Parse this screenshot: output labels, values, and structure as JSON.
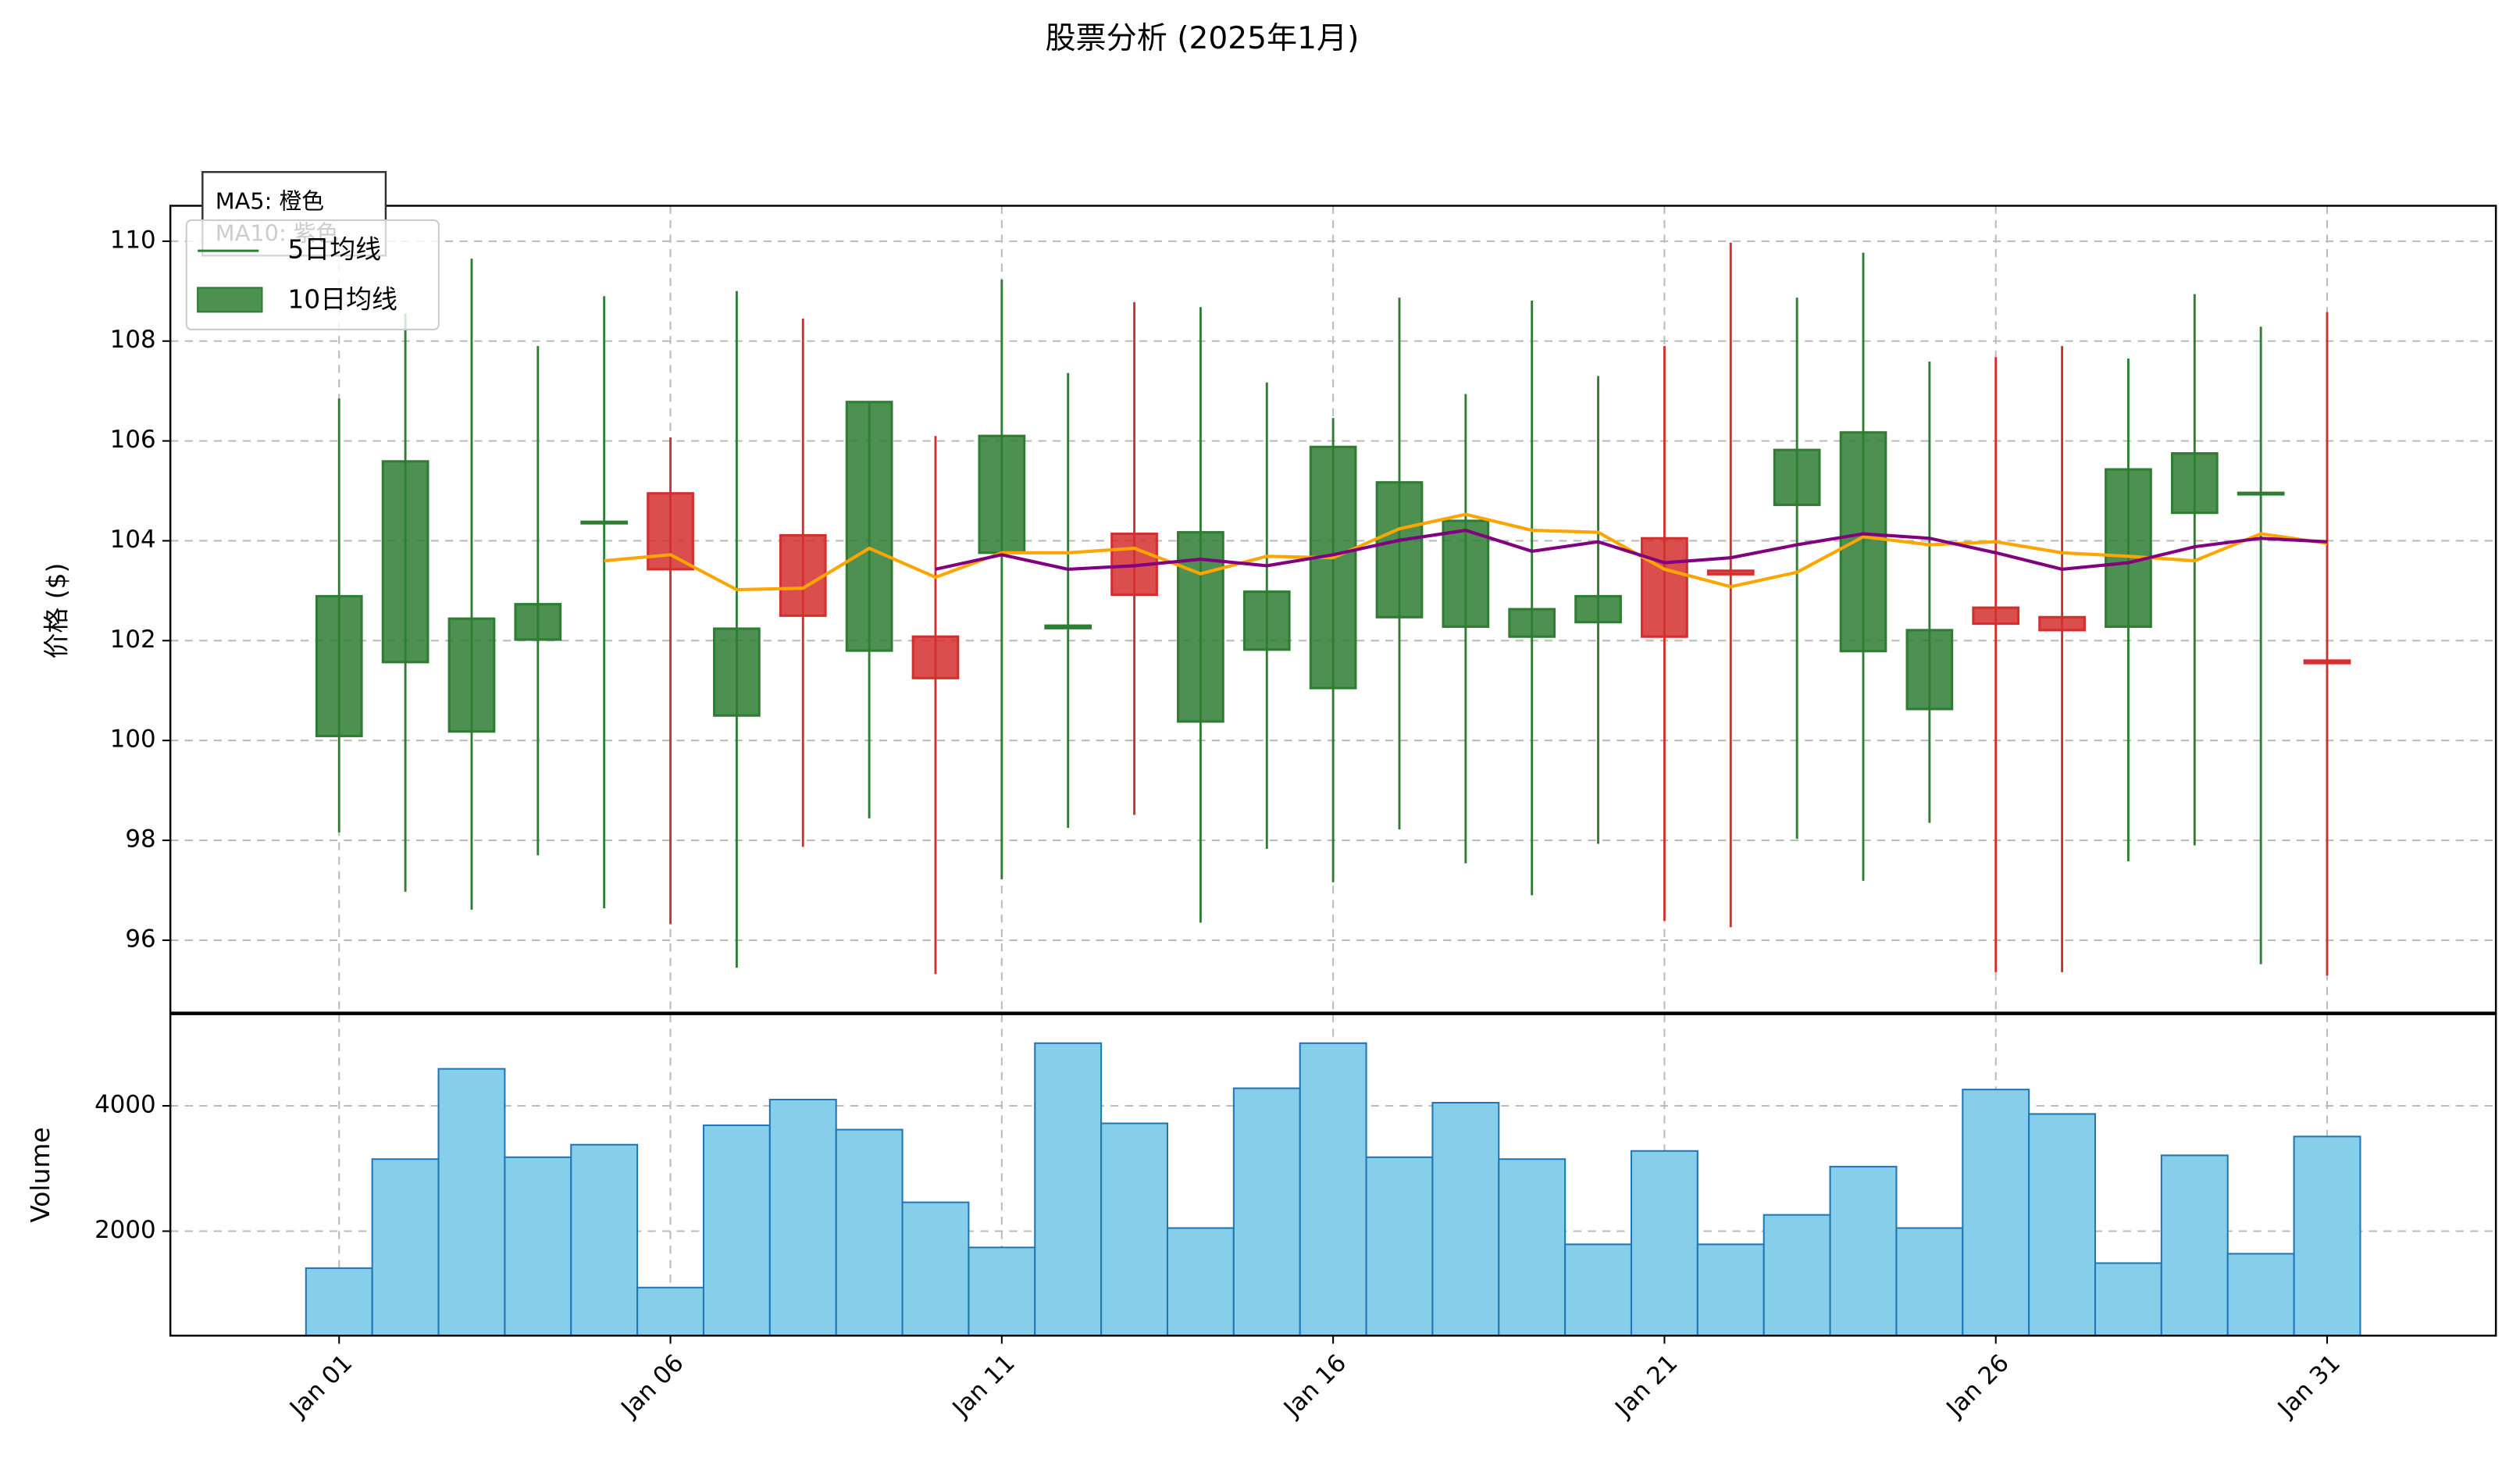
{
  "chart_data": [
    {
      "type": "candlestick",
      "title": "股票分析 (2025年1月)",
      "y_label": "价格 ($)",
      "open": [
        100.09,
        101.57,
        100.18,
        102.02,
        104.35,
        104.95,
        100.5,
        104.11,
        101.8,
        102.08,
        103.76,
        102.25,
        104.14,
        100.38,
        101.82,
        101.05,
        102.47,
        102.28,
        102.08,
        102.37,
        104.05,
        103.4,
        104.72,
        101.79,
        100.63,
        102.66,
        102.47,
        102.28,
        104.56,
        104.93,
        101.6
      ],
      "high": [
        106.85,
        108.55,
        109.65,
        107.9,
        108.9,
        106.07,
        109.0,
        108.45,
        106.8,
        106.1,
        109.23,
        107.36,
        108.78,
        108.68,
        107.17,
        106.46,
        108.87,
        106.94,
        108.81,
        107.3,
        107.9,
        109.97,
        108.87,
        109.77,
        107.59,
        107.68,
        107.9,
        107.65,
        108.94,
        108.29,
        108.58
      ],
      "low": [
        98.16,
        96.97,
        96.61,
        97.7,
        96.64,
        96.32,
        95.45,
        97.87,
        98.44,
        95.32,
        97.22,
        98.25,
        98.51,
        96.35,
        97.83,
        97.16,
        98.22,
        97.54,
        96.9,
        97.93,
        96.39,
        96.26,
        98.03,
        97.19,
        98.35,
        95.36,
        95.36,
        97.58,
        97.9,
        95.52,
        95.29
      ],
      "close": [
        102.89,
        105.59,
        102.44,
        102.73,
        104.38,
        103.43,
        102.24,
        102.5,
        106.78,
        101.25,
        106.1,
        102.3,
        102.92,
        104.17,
        102.98,
        105.88,
        105.17,
        104.4,
        102.63,
        102.89,
        102.08,
        103.33,
        105.82,
        106.17,
        102.21,
        102.34,
        102.21,
        105.43,
        105.75,
        104.96,
        101.55
      ],
      "up_color": "#2e7d32",
      "down_color": "#d32f2f",
      "series": [
        {
          "name": "5日均线",
          "color": "#ffa500",
          "values": [
            null,
            null,
            null,
            null,
            103.6,
            103.72,
            103.02,
            103.05,
            103.85,
            103.27,
            103.76,
            103.76,
            103.85,
            103.34,
            103.69,
            103.66,
            104.24,
            104.53,
            104.21,
            104.17,
            103.43,
            103.08,
            103.37,
            104.08,
            103.92,
            103.98,
            103.76,
            103.69,
            103.6,
            104.14,
            103.95
          ]
        },
        {
          "name": "10日均线",
          "color": "#800080",
          "values": [
            null,
            null,
            null,
            null,
            null,
            null,
            null,
            null,
            null,
            103.43,
            103.72,
            103.43,
            103.5,
            103.63,
            103.5,
            103.72,
            104.01,
            104.21,
            103.79,
            103.98,
            103.56,
            103.66,
            103.92,
            104.14,
            104.05,
            103.76,
            103.43,
            103.56,
            103.88,
            104.05,
            103.98
          ]
        }
      ],
      "legend": {
        "loc": "upper left",
        "handles": [
          {
            "kind": "line",
            "color": "#2e7d32"
          },
          {
            "kind": "patch",
            "color": "#2e7d32"
          }
        ]
      },
      "annotation": [
        "MA5: 橙色",
        "MA10: 紫色"
      ],
      "ylim": [
        94.55,
        110.71
      ],
      "yticks": [
        96,
        98,
        100,
        102,
        104,
        106,
        108,
        110
      ],
      "grid": true
    },
    {
      "type": "bar",
      "y_label": "Volume",
      "categories": [
        "Jan 01",
        null,
        null,
        null,
        null,
        "Jan 06",
        null,
        null,
        null,
        null,
        "Jan 11",
        null,
        null,
        null,
        null,
        "Jan 16",
        null,
        null,
        null,
        null,
        "Jan 21",
        null,
        null,
        null,
        null,
        "Jan 26",
        null,
        null,
        null,
        null,
        "Jan 31"
      ],
      "values": [
        1410,
        3150,
        4590,
        3180,
        3380,
        1100,
        3690,
        4100,
        3620,
        2460,
        1740,
        5000,
        3720,
        2050,
        4280,
        5000,
        3180,
        4050,
        3150,
        1790,
        3280,
        1790,
        2260,
        3030,
        2050,
        4260,
        3870,
        1490,
        3210,
        1640,
        3510
      ],
      "color": "#87ceeb",
      "edge_color": "#1f77b4",
      "ylim": [
        333,
        5462
      ],
      "yticks": [
        2000,
        4000
      ],
      "grid": true
    }
  ]
}
